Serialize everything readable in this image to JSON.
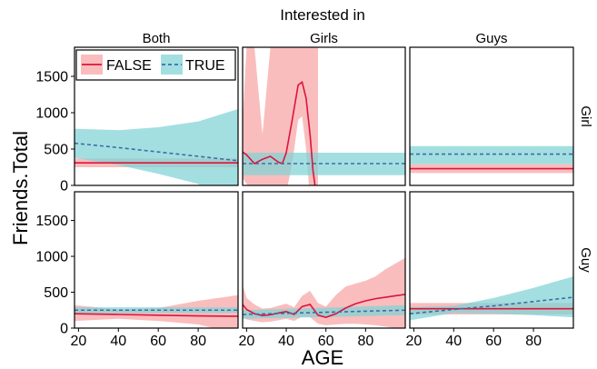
{
  "chart_data": {
    "type": "line",
    "title": "Interested in",
    "xlabel": "AGE",
    "ylabel": "Friends.Total",
    "xlim": [
      18,
      100
    ],
    "ylim": [
      0,
      1900
    ],
    "x_ticks": [
      "20",
      "40",
      "60",
      "80"
    ],
    "y_ticks": [
      "0",
      "500",
      "1000",
      "1500"
    ],
    "col_facets": [
      "Both",
      "Girls",
      "Guys"
    ],
    "row_facets": [
      "Girl",
      "Guy"
    ],
    "legend": {
      "placement": "inside-top-left",
      "entries": [
        {
          "label": "FALSE",
          "color": "#dc143c",
          "band_color": "#f8a3a3",
          "dash": "solid"
        },
        {
          "label": "TRUE",
          "color": "#3a6ea5",
          "band_color": "#7fd3d6",
          "dash": "dashed"
        }
      ]
    },
    "colors": {
      "false_line": "#dc143c",
      "false_band": "#f8a3a3",
      "true_line": "#3a6ea5",
      "true_band": "#7fd3d6"
    },
    "panels": [
      {
        "row": "Girl",
        "col": "Both",
        "series": [
          {
            "name": "FALSE",
            "x": [
              18,
              100
            ],
            "y": [
              310,
              310
            ],
            "lower": [
              250,
              250
            ],
            "upper": [
              370,
              370
            ]
          },
          {
            "name": "TRUE",
            "x": [
              18,
              40,
              60,
              80,
              100
            ],
            "y": [
              580,
              520,
              460,
              400,
              340
            ],
            "lower": [
              380,
              280,
              160,
              20,
              -340
            ],
            "upper": [
              780,
              760,
              800,
              880,
              1050
            ]
          }
        ]
      },
      {
        "row": "Girl",
        "col": "Girls",
        "series": [
          {
            "name": "FALSE",
            "x": [
              18,
              20,
              24,
              28,
              32,
              36,
              38,
              40,
              43,
              46,
              48,
              50,
              52,
              53.5,
              55,
              56
            ],
            "y": [
              460,
              420,
              300,
              360,
              400,
              320,
              300,
              450,
              900,
              1380,
              1420,
              1200,
              700,
              200,
              -100,
              -300
            ],
            "lower": [
              100,
              20,
              -100,
              -100,
              -100,
              -100,
              -100,
              -100,
              300,
              900,
              950,
              500,
              -200,
              -400,
              -600,
              -700
            ],
            "upper": [
              900,
              1900,
              1900,
              700,
              1900,
              1900,
              1900,
              1900,
              1900,
              1900,
              1900,
              1900,
              1900,
              1900,
              1900,
              1900
            ]
          },
          {
            "name": "TRUE",
            "x": [
              18,
              100
            ],
            "y": [
              300,
              300
            ],
            "lower": [
              140,
              140
            ],
            "upper": [
              450,
              450
            ]
          }
        ]
      },
      {
        "row": "Girl",
        "col": "Guys",
        "series": [
          {
            "name": "FALSE",
            "x": [
              18,
              100
            ],
            "y": [
              230,
              230
            ],
            "lower": [
              170,
              170
            ],
            "upper": [
              290,
              290
            ]
          },
          {
            "name": "TRUE",
            "x": [
              18,
              100
            ],
            "y": [
              430,
              430
            ],
            "lower": [
              290,
              290
            ],
            "upper": [
              540,
              540
            ]
          }
        ]
      },
      {
        "row": "Guy",
        "col": "Both",
        "series": [
          {
            "name": "FALSE",
            "x": [
              18,
              40,
              60,
              80,
              100
            ],
            "y": [
              200,
              190,
              180,
              170,
              165
            ],
            "lower": [
              100,
              130,
              100,
              50,
              -80
            ],
            "upper": [
              320,
              260,
              280,
              380,
              460
            ]
          },
          {
            "name": "TRUE",
            "x": [
              18,
              100
            ],
            "y": [
              250,
              250
            ],
            "lower": [
              210,
              210
            ],
            "upper": [
              290,
              290
            ]
          }
        ]
      },
      {
        "row": "Guy",
        "col": "Girls",
        "series": [
          {
            "name": "FALSE",
            "x": [
              18,
              20,
              24,
              28,
              32,
              36,
              40,
              44,
              48,
              52,
              56,
              60,
              65,
              70,
              75,
              80,
              85,
              90,
              95,
              100
            ],
            "y": [
              330,
              260,
              200,
              175,
              185,
              210,
              230,
              190,
              300,
              330,
              180,
              150,
              200,
              280,
              340,
              380,
              410,
              430,
              450,
              470
            ],
            "lower": [
              150,
              120,
              100,
              80,
              90,
              110,
              130,
              100,
              160,
              150,
              60,
              40,
              50,
              60,
              60,
              50,
              40,
              20,
              0,
              -50
            ],
            "upper": [
              600,
              420,
              330,
              270,
              280,
              310,
              340,
              290,
              450,
              520,
              350,
              300,
              460,
              580,
              620,
              660,
              720,
              820,
              900,
              980
            ]
          },
          {
            "name": "TRUE",
            "x": [
              18,
              100
            ],
            "y": [
              190,
              250
            ],
            "lower": [
              130,
              180
            ],
            "upper": [
              250,
              320
            ]
          }
        ]
      },
      {
        "row": "Guy",
        "col": "Guys",
        "series": [
          {
            "name": "FALSE",
            "x": [
              18,
              100
            ],
            "y": [
              270,
              270
            ],
            "lower": [
              190,
              190
            ],
            "upper": [
              350,
              350
            ]
          },
          {
            "name": "TRUE",
            "x": [
              18,
              40,
              60,
              80,
              100
            ],
            "y": [
              200,
              260,
              310,
              370,
              430
            ],
            "lower": [
              110,
              210,
              200,
              180,
              150
            ],
            "upper": [
              290,
              310,
              420,
              560,
              720
            ]
          }
        ]
      }
    ]
  }
}
